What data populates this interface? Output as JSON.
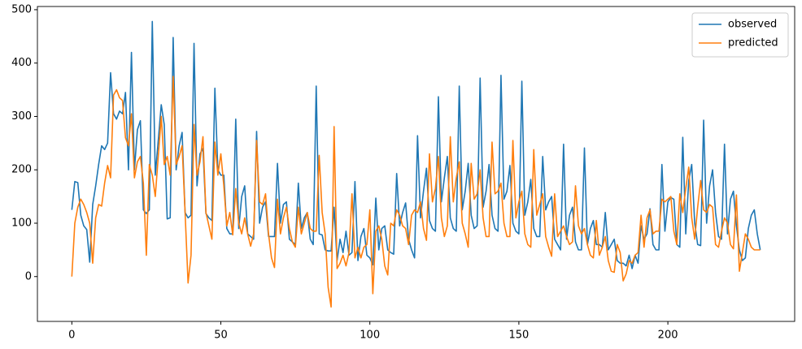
{
  "chart_data": {
    "type": "line",
    "x": [
      0,
      1,
      2,
      3,
      4,
      5,
      6,
      7,
      8,
      9,
      10,
      11,
      12,
      13,
      14,
      15,
      16,
      17,
      18,
      19,
      20,
      21,
      22,
      23,
      24,
      25,
      26,
      27,
      28,
      29,
      30,
      31,
      32,
      33,
      34,
      35,
      36,
      37,
      38,
      39,
      40,
      41,
      42,
      43,
      44,
      45,
      46,
      47,
      48,
      49,
      50,
      51,
      52,
      53,
      54,
      55,
      56,
      57,
      58,
      59,
      60,
      61,
      62,
      63,
      64,
      65,
      66,
      67,
      68,
      69,
      70,
      71,
      72,
      73,
      74,
      75,
      76,
      77,
      78,
      79,
      80,
      81,
      82,
      83,
      84,
      85,
      86,
      87,
      88,
      89,
      90,
      91,
      92,
      93,
      94,
      95,
      96,
      97,
      98,
      99,
      100,
      101,
      102,
      103,
      104,
      105,
      106,
      107,
      108,
      109,
      110,
      111,
      112,
      113,
      114,
      115,
      116,
      117,
      118,
      119,
      120,
      121,
      122,
      123,
      124,
      125,
      126,
      127,
      128,
      129,
      130,
      131,
      132,
      133,
      134,
      135,
      136,
      137,
      138,
      139,
      140,
      141,
      142,
      143,
      144,
      145,
      146,
      147,
      148,
      149,
      150,
      151,
      152,
      153,
      154,
      155,
      156,
      157,
      158,
      159,
      160,
      161,
      162,
      163,
      164,
      165,
      166,
      167,
      168,
      169,
      170,
      171,
      172,
      173,
      174,
      175,
      176,
      177,
      178,
      179,
      180,
      181,
      182,
      183,
      184,
      185,
      186,
      187,
      188,
      189,
      190,
      191,
      192,
      193,
      194,
      195,
      196,
      197,
      198,
      199,
      200,
      201,
      202,
      203,
      204,
      205,
      206,
      207,
      208,
      209,
      210,
      211,
      212,
      213,
      214,
      215,
      216,
      217,
      218,
      219,
      220,
      221,
      222,
      223,
      224,
      225,
      226,
      227,
      228,
      229,
      230,
      231
    ],
    "series": [
      {
        "name": "observed",
        "color": "#1f77b4",
        "values": [
          125,
          178,
          176,
          115,
          95,
          88,
          27,
          135,
          170,
          210,
          245,
          238,
          250,
          382,
          305,
          295,
          310,
          305,
          345,
          200,
          420,
          200,
          275,
          292,
          125,
          118,
          125,
          478,
          190,
          255,
          322,
          285,
          108,
          110,
          448,
          200,
          245,
          270,
          120,
          110,
          115,
          437,
          170,
          230,
          240,
          118,
          110,
          105,
          353,
          200,
          190,
          190,
          90,
          80,
          80,
          295,
          90,
          150,
          170,
          80,
          75,
          70,
          272,
          100,
          130,
          140,
          75,
          75,
          75,
          212,
          100,
          135,
          140,
          70,
          65,
          60,
          175,
          90,
          110,
          120,
          70,
          60,
          357,
          80,
          78,
          50,
          48,
          48,
          130,
          30,
          70,
          45,
          85,
          40,
          45,
          178,
          30,
          75,
          90,
          40,
          35,
          22,
          147,
          50,
          90,
          95,
          50,
          45,
          42,
          193,
          95,
          120,
          138,
          70,
          50,
          35,
          264,
          110,
          160,
          203,
          105,
          90,
          85,
          337,
          140,
          185,
          225,
          110,
          90,
          85,
          357,
          125,
          160,
          212,
          115,
          90,
          95,
          372,
          130,
          160,
          210,
          115,
          90,
          85,
          377,
          145,
          160,
          208,
          100,
          85,
          80,
          366,
          115,
          140,
          182,
          90,
          75,
          75,
          225,
          125,
          140,
          150,
          70,
          60,
          50,
          248,
          70,
          115,
          130,
          65,
          50,
          50,
          241,
          60,
          90,
          105,
          60,
          60,
          55,
          120,
          50,
          60,
          70,
          30,
          25,
          25,
          20,
          40,
          15,
          40,
          25,
          95,
          70,
          80,
          127,
          60,
          50,
          50,
          210,
          85,
          140,
          148,
          145,
          60,
          55,
          261,
          80,
          180,
          210,
          100,
          60,
          58,
          293,
          100,
          170,
          200,
          120,
          75,
          70,
          248,
          80,
          145,
          160,
          95,
          50,
          30,
          35,
          90,
          115,
          125,
          80,
          50
        ]
      },
      {
        "name": "predicted",
        "color": "#ff7f0e",
        "values": [
          0,
          100,
          130,
          145,
          135,
          120,
          100,
          25,
          110,
          135,
          132,
          175,
          208,
          185,
          340,
          350,
          335,
          330,
          260,
          245,
          305,
          185,
          215,
          225,
          175,
          40,
          210,
          190,
          150,
          225,
          300,
          210,
          225,
          190,
          375,
          210,
          225,
          245,
          120,
          -12,
          40,
          285,
          190,
          215,
          262,
          120,
          95,
          70,
          252,
          190,
          230,
          170,
          95,
          120,
          78,
          165,
          100,
          80,
          110,
          80,
          57,
          80,
          255,
          140,
          135,
          155,
          80,
          35,
          17,
          145,
          80,
          110,
          130,
          90,
          65,
          55,
          130,
          80,
          100,
          120,
          90,
          85,
          85,
          227,
          120,
          80,
          -20,
          -57,
          281,
          15,
          25,
          40,
          20,
          45,
          155,
          35,
          55,
          35,
          55,
          60,
          125,
          -32,
          85,
          95,
          70,
          20,
          3,
          100,
          95,
          125,
          115,
          95,
          90,
          60,
          115,
          125,
          120,
          140,
          90,
          68,
          230,
          140,
          165,
          225,
          110,
          75,
          95,
          262,
          140,
          185,
          215,
          100,
          80,
          55,
          212,
          145,
          155,
          200,
          110,
          75,
          75,
          252,
          155,
          160,
          175,
          100,
          75,
          75,
          255,
          110,
          140,
          160,
          80,
          60,
          55,
          238,
          115,
          135,
          155,
          75,
          55,
          38,
          155,
          75,
          85,
          95,
          75,
          60,
          65,
          170,
          95,
          80,
          90,
          60,
          40,
          35,
          105,
          40,
          55,
          75,
          30,
          10,
          8,
          60,
          45,
          -8,
          5,
          30,
          25,
          40,
          45,
          115,
          55,
          110,
          125,
          80,
          85,
          85,
          145,
          140,
          145,
          150,
          85,
          60,
          155,
          120,
          165,
          205,
          110,
          70,
          130,
          180,
          125,
          120,
          135,
          130,
          60,
          55,
          85,
          110,
          100,
          60,
          52,
          153,
          10,
          45,
          80,
          70,
          55,
          50,
          50,
          50
        ]
      }
    ],
    "xlim": [
      -11.55,
      242.55
    ],
    "ylim": [
      -84,
      506
    ],
    "xticks": [
      0,
      50,
      100,
      150,
      200
    ],
    "yticks": [
      0,
      100,
      200,
      300,
      400,
      500
    ],
    "grid": false,
    "legend": "upper right"
  }
}
